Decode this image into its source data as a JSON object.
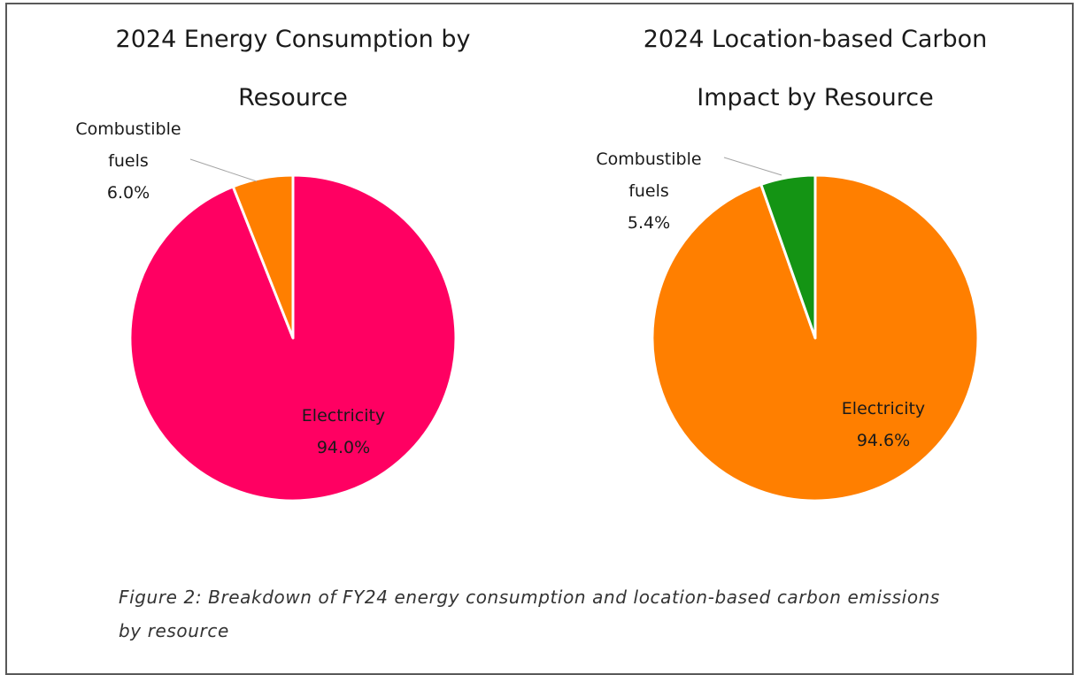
{
  "chart_data": [
    {
      "type": "pie",
      "title": "2024 Energy Consumption by Resource",
      "categories": [
        "Electricity",
        "Combustible fuels"
      ],
      "values": [
        94.0,
        6.0
      ],
      "value_labels": [
        "94.0%",
        "6.0%"
      ],
      "colors": [
        "#ff0062",
        "#ff7f00"
      ]
    },
    {
      "type": "pie",
      "title": "2024 Location-based Carbon Impact by Resource",
      "categories": [
        "Electricity",
        "Combustible fuels"
      ],
      "values": [
        94.6,
        5.4
      ],
      "value_labels": [
        "94.6%",
        "5.4%"
      ],
      "colors": [
        "#ff7f00",
        "#149414"
      ]
    }
  ],
  "caption": "Figure 2: Breakdown of FY24 energy consumption and location-based carbon emissions by resource"
}
